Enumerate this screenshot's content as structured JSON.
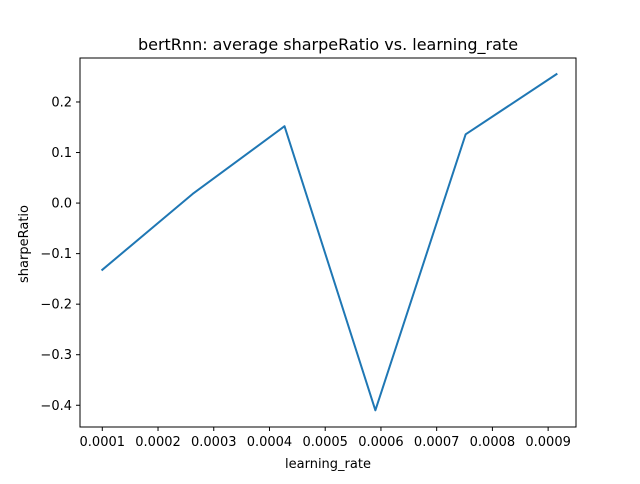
{
  "chart_data": {
    "type": "line",
    "title": "bertRnn: average sharpeRatio vs. learning_rate",
    "xlabel": "learning_rate",
    "ylabel": "sharpeRatio",
    "xlim": [
      6e-05,
      0.00095
    ],
    "ylim": [
      -0.443,
      0.287
    ],
    "x_ticks": [
      0.0001,
      0.0002,
      0.0003,
      0.0004,
      0.0005,
      0.0006,
      0.0007,
      0.0008,
      0.0009
    ],
    "x_tick_labels": [
      "0.0001",
      "0.0002",
      "0.0003",
      "0.0004",
      "0.0005",
      "0.0006",
      "0.0007",
      "0.0008",
      "0.0009"
    ],
    "y_ticks": [
      -0.4,
      -0.3,
      -0.2,
      -0.1,
      0.0,
      0.1,
      0.2
    ],
    "y_tick_labels": [
      "−0.4",
      "−0.3",
      "−0.2",
      "−0.1",
      "0.0",
      "0.1",
      "0.2"
    ],
    "grid": false,
    "series": [
      {
        "color": "#1f77b4",
        "x": [
          0.0001,
          0.000262,
          0.000427,
          0.00059,
          0.000752,
          0.000915
        ],
        "values": [
          -0.132,
          0.018,
          0.152,
          -0.41,
          0.136,
          0.255
        ]
      }
    ]
  }
}
